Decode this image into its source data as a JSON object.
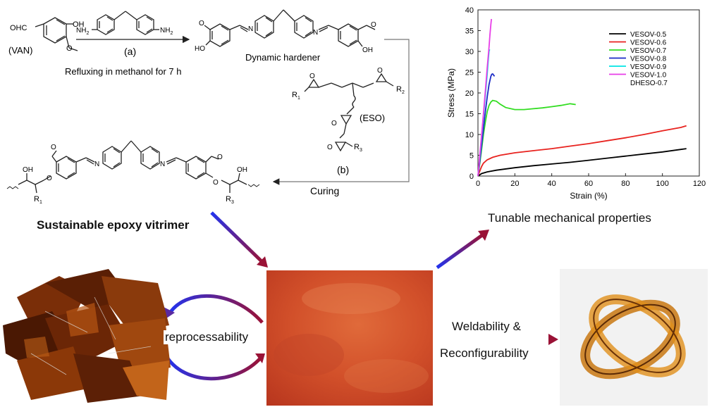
{
  "scheme": {
    "van_label": "(VAN)",
    "step_a": "(a)",
    "step_a_condition": "Refluxing in methanol for 7 h",
    "hardener_label": "Dynamic hardener",
    "eso_label": "(ESO)",
    "step_b": "(b)",
    "curing_label": "Curing",
    "product_label": "Sustainable epoxy vitrimer",
    "groups": {
      "cho": "OHC",
      "oh": "OH",
      "nh2": "NH",
      "sub2": "2",
      "n": "N",
      "o": "O",
      "r1": "R",
      "r2": "R",
      "r3": "R",
      "s1": "1",
      "s2": "2",
      "s3": "3"
    }
  },
  "chart_data": {
    "type": "line",
    "xlabel": "Strain (%)",
    "ylabel": "Stress (MPa)",
    "xlim": [
      0,
      120
    ],
    "ylim": [
      0,
      40
    ],
    "xticks": [
      0,
      20,
      40,
      60,
      80,
      100,
      120
    ],
    "yticks": [
      0,
      5,
      10,
      15,
      20,
      25,
      30,
      35,
      40
    ],
    "grid": false,
    "legend_position": "top-right",
    "series": [
      {
        "name": "VESOV-0.5",
        "color": "#000000",
        "x": [
          0,
          2,
          5,
          10,
          20,
          30,
          40,
          50,
          60,
          70,
          80,
          90,
          100,
          110,
          113
        ],
        "y": [
          0,
          0.6,
          1.0,
          1.4,
          2.0,
          2.5,
          2.9,
          3.3,
          3.8,
          4.3,
          4.8,
          5.3,
          5.8,
          6.4,
          6.6
        ]
      },
      {
        "name": "VESOV-0.6",
        "color": "#e8231f",
        "x": [
          0,
          1,
          2,
          3,
          5,
          8,
          12,
          20,
          30,
          40,
          50,
          60,
          70,
          80,
          90,
          100,
          110,
          113
        ],
        "y": [
          0,
          1.2,
          2.3,
          3.1,
          3.9,
          4.5,
          5.0,
          5.6,
          6.1,
          6.6,
          7.2,
          7.8,
          8.5,
          9.2,
          10.0,
          10.9,
          11.7,
          12.1
        ]
      },
      {
        "name": "VESOV-0.7",
        "color": "#33dd22",
        "x": [
          0,
          1,
          2,
          3,
          4,
          5,
          6,
          7,
          8,
          10,
          12,
          15,
          20,
          25,
          30,
          35,
          40,
          45,
          50,
          53
        ],
        "y": [
          0,
          3,
          6.5,
          10,
          13,
          15.5,
          17,
          17.8,
          18.2,
          18.0,
          17.3,
          16.5,
          16.0,
          16.0,
          16.2,
          16.4,
          16.7,
          17.0,
          17.4,
          17.2
        ]
      },
      {
        "name": "VESOV-0.8",
        "color": "#1b2bc6",
        "x": [
          0,
          1,
          2,
          3,
          4,
          5,
          6,
          7,
          7.5,
          8,
          8.5,
          9
        ],
        "y": [
          0,
          3.5,
          7.5,
          11.5,
          15.5,
          19,
          22,
          24,
          24.5,
          24.6,
          24.3,
          24.0
        ]
      },
      {
        "name": "VESOV-0.9",
        "color": "#00e5e5",
        "x": [
          0,
          1,
          2,
          3,
          4,
          5,
          5.5,
          6,
          6.3
        ],
        "y": [
          0,
          4.5,
          9.5,
          14.5,
          19.5,
          24.5,
          27.5,
          30,
          30.5
        ]
      },
      {
        "name": "VESOV-1.0",
        "color": "#e83ee8",
        "x": [
          0,
          1,
          2,
          3,
          4,
          5,
          6,
          6.5,
          7,
          7.3
        ],
        "y": [
          0,
          5,
          10,
          15,
          20.5,
          26,
          31,
          34,
          36.5,
          37.8
        ]
      },
      {
        "name": "DHESO-0.7",
        "color": "#ffffff",
        "x": [],
        "y": []
      }
    ]
  },
  "photos": {
    "reprocessability_label": "reprocessability",
    "weld_line1": "Weldability &",
    "weld_line2": "Reconfigurability",
    "tunable_label": "Tunable mechanical properties"
  }
}
